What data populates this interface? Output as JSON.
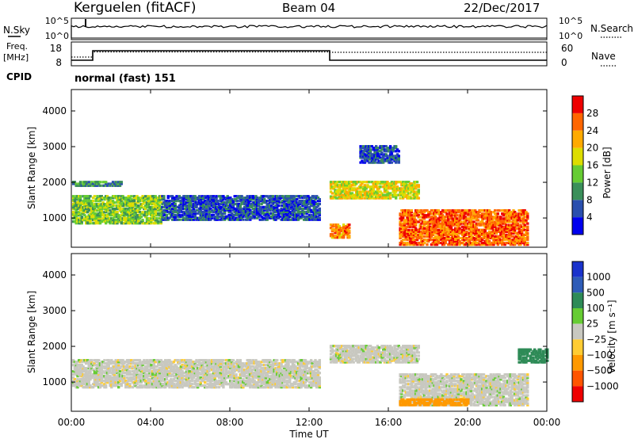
{
  "header": {
    "station": "Kerguelen (fitACF)",
    "beam": "Beam 04",
    "date": "22/Dec/2017"
  },
  "nsky_panel": {
    "left_label": "N.Sky",
    "left_ticks": [
      "10^5",
      "10^0"
    ],
    "right_label": "N.Search",
    "right_ticks": [
      "10^5",
      "10^0"
    ]
  },
  "freq_panel": {
    "left_label_line1": "Freq.",
    "left_label_line2": "[MHz]",
    "left_ticks": [
      "18",
      "8"
    ],
    "right_label": "Nave",
    "right_ticks": [
      "60",
      "0"
    ]
  },
  "cpid_panel": {
    "label": "CPID",
    "mode": "normal (fast) 151"
  },
  "colors": {
    "power_scale": [
      "#0000ee",
      "#2a4fae",
      "#3a8f5a",
      "#66cc33",
      "#dddd00",
      "#ffaa00",
      "#ff6600",
      "#ee0000"
    ],
    "velocity_scale": [
      "#ee0000",
      "#ff5500",
      "#ff9900",
      "#ffcc33",
      "#c8c8c0",
      "#66cc33",
      "#2e8b57",
      "#2e5cb8",
      "#1a33cc"
    ]
  },
  "chart_data": [
    {
      "type": "heatmap",
      "name": "power",
      "xlabel": "Time UT",
      "ylabel": "Slant Range [km]",
      "xlim_hours": [
        0,
        24
      ],
      "ylim_km": [
        180,
        4600
      ],
      "y_ticks": [
        "1000",
        "2000",
        "3000",
        "4000"
      ],
      "x_ticks": [
        "00:00",
        "04:00",
        "08:00",
        "12:00",
        "16:00",
        "20:00",
        "00:00"
      ],
      "colorbar_label": "Power [dB]",
      "colorbar_ticks": [
        "4",
        "8",
        "12",
        "16",
        "20",
        "24",
        "28"
      ],
      "colorbar_range": [
        0,
        32
      ],
      "echo_regions": [
        {
          "t0": 0.0,
          "t1": 4.5,
          "r0": 800,
          "r1": 1600,
          "power_db": 14
        },
        {
          "t0": 4.5,
          "t1": 12.5,
          "r0": 900,
          "r1": 1600,
          "power_db": 6
        },
        {
          "t0": 0.0,
          "t1": 2.5,
          "r0": 1850,
          "r1": 2000,
          "power_db": 10
        },
        {
          "t0": 13.0,
          "t1": 17.5,
          "r0": 1500,
          "r1": 2000,
          "power_db": 18
        },
        {
          "t0": 16.5,
          "t1": 23.0,
          "r0": 200,
          "r1": 1200,
          "power_db": 26
        },
        {
          "t0": 13.0,
          "t1": 14.0,
          "r0": 400,
          "r1": 800,
          "power_db": 24
        },
        {
          "t0": 14.5,
          "t1": 16.5,
          "r0": 2500,
          "r1": 3000,
          "power_db": 6
        }
      ]
    },
    {
      "type": "heatmap",
      "name": "velocity",
      "xlabel": "Time UT",
      "ylabel": "Slant Range [km]",
      "xlim_hours": [
        0,
        24
      ],
      "ylim_km": [
        180,
        4600
      ],
      "y_ticks": [
        "1000",
        "2000",
        "3000",
        "4000"
      ],
      "x_ticks": [
        "00:00",
        "04:00",
        "08:00",
        "12:00",
        "16:00",
        "20:00",
        "00:00"
      ],
      "colorbar_label": "Velocity [m s⁻¹]",
      "colorbar_ticks": [
        "1000",
        "500",
        "100",
        "25",
        "−25",
        "−100",
        "−500",
        "−1000"
      ],
      "echo_regions": [
        {
          "t0": 0.0,
          "t1": 12.5,
          "r0": 800,
          "r1": 1600,
          "velocity": 0
        },
        {
          "t0": 13.0,
          "t1": 17.5,
          "r0": 1500,
          "r1": 2000,
          "velocity": 0
        },
        {
          "t0": 16.5,
          "t1": 23.0,
          "r0": 300,
          "r1": 1200,
          "velocity": 0
        },
        {
          "t0": 16.5,
          "t1": 20.0,
          "r0": 300,
          "r1": 500,
          "velocity": -150
        },
        {
          "t0": 22.5,
          "t1": 24.0,
          "r0": 1500,
          "r1": 1900,
          "velocity": 400
        }
      ]
    }
  ]
}
